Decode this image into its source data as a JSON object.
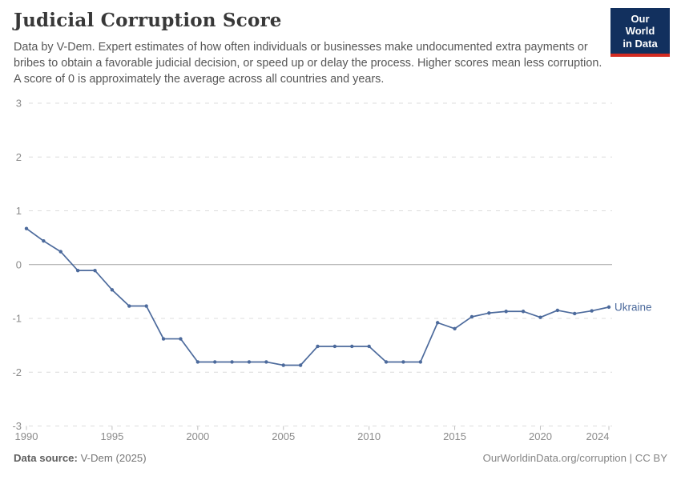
{
  "header": {
    "title": "Judicial Corruption Score",
    "subtitle": "Data by V-Dem. Expert estimates of how often individuals or businesses make undocumented extra payments or bribes to obtain a favorable judicial decision, or speed up or delay the process. Higher scores mean less corruption. A score of 0 is approximately the average across all countries and years.",
    "logo": {
      "line1": "Our World",
      "line2": "in Data"
    }
  },
  "chart_data": {
    "type": "line",
    "title": "Judicial Corruption Score",
    "entity": "Ukraine",
    "xlabel": "",
    "ylabel": "",
    "ylim": [
      -3,
      3
    ],
    "yticks": [
      3,
      2,
      1,
      0,
      -1,
      -2,
      -3
    ],
    "xticks": [
      1990,
      1995,
      2000,
      2005,
      2010,
      2015,
      2020,
      2024
    ],
    "grid": "horizontal-dashed",
    "zero_line": "solid",
    "legend": "end-of-line-label",
    "x": [
      1990,
      1991,
      1992,
      1993,
      1994,
      1995,
      1996,
      1997,
      1998,
      1999,
      2000,
      2001,
      2002,
      2003,
      2004,
      2005,
      2006,
      2007,
      2008,
      2009,
      2010,
      2011,
      2012,
      2013,
      2014,
      2015,
      2016,
      2017,
      2018,
      2019,
      2020,
      2021,
      2022,
      2023,
      2024
    ],
    "series": [
      {
        "name": "Ukraine",
        "color": "#4c6a9c",
        "values": [
          0.67,
          0.44,
          0.24,
          -0.11,
          -0.11,
          -0.47,
          -0.77,
          -0.77,
          -1.38,
          -1.38,
          -1.81,
          -1.81,
          -1.81,
          -1.81,
          -1.81,
          -1.87,
          -1.87,
          -1.52,
          -1.52,
          -1.52,
          -1.52,
          -1.81,
          -1.81,
          -1.81,
          -1.08,
          -1.19,
          -0.97,
          -0.9,
          -0.87,
          -0.87,
          -0.98,
          -0.85,
          -0.91,
          -0.86,
          -0.79
        ]
      }
    ]
  },
  "footer": {
    "source_label": "Data source:",
    "source_value": "V-Dem (2025)",
    "credit": "OurWorldinData.org/corruption | CC BY"
  },
  "colors": {
    "line": "#4c6a9c",
    "logo_navy": "#12305e",
    "logo_red": "#d42b21",
    "grid": "#dcdcdc",
    "zero_line": "#a3a3a3",
    "tick_text": "#8b8b8b"
  }
}
